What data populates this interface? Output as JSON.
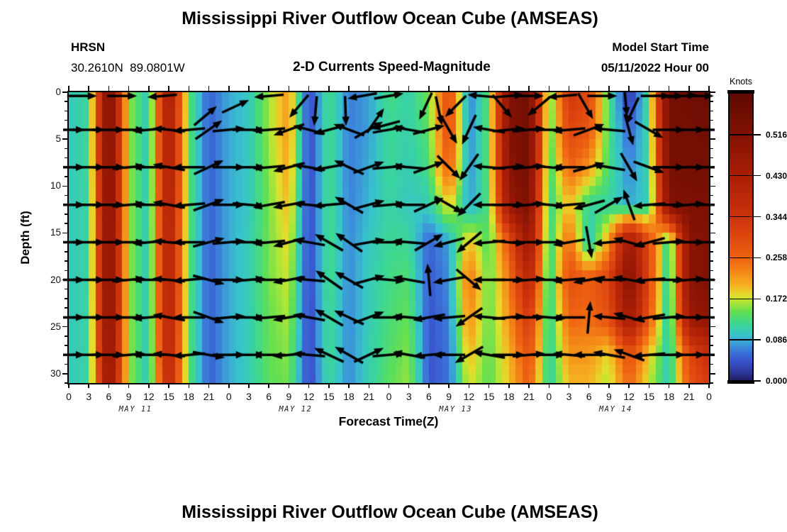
{
  "titles": {
    "main_top": "Mississippi River Outflow Ocean Cube (AMSEAS)",
    "main_bottom": "Mississippi River Outflow Ocean Cube (AMSEAS)",
    "subtitle": "2-D Currents Speed-Magnitude"
  },
  "header": {
    "station": "HRSN",
    "coordinates": "30.2610N  89.0801W",
    "model_start_label": "Model Start Time",
    "model_start_value": "05/11/2022 Hour 00"
  },
  "chart_data": {
    "type": "heatmap",
    "title": "2-D Currents Speed-Magnitude",
    "xlabel": "Forecast Time(Z)",
    "ylabel": "Depth (ft)",
    "x_range_hours": [
      0,
      96
    ],
    "y_range_ft": [
      0,
      31
    ],
    "x_tick_step_hours": 3,
    "x_tick_labels": [
      "0",
      "3",
      "6",
      "9",
      "12",
      "15",
      "18",
      "21",
      "0",
      "3",
      "6",
      "9",
      "12",
      "15",
      "18",
      "21",
      "0",
      "3",
      "6",
      "9",
      "12",
      "15",
      "18",
      "21",
      "0",
      "3",
      "6",
      "9",
      "12",
      "15",
      "18",
      "21",
      "0"
    ],
    "date_labels": [
      {
        "label": "MAY 11",
        "hour": 10
      },
      {
        "label": "MAY 12",
        "hour": 34
      },
      {
        "label": "MAY 13",
        "hour": 58
      },
      {
        "label": "MAY 14",
        "hour": 82
      }
    ],
    "y_tick_labels": [
      "0",
      "5",
      "10",
      "15",
      "20",
      "25",
      "30"
    ],
    "y_tick_values": [
      0,
      5,
      10,
      15,
      20,
      25,
      30
    ],
    "colorbar": {
      "unit": "Knots",
      "range": [
        0,
        0.602
      ],
      "tick_values": [
        0.516,
        0.43,
        0.344,
        0.258,
        0.172,
        0.086,
        0.0
      ],
      "tick_labels": [
        "0.516",
        "0.430",
        "0.344",
        "0.258",
        "0.172",
        "0.086",
        "0.000"
      ]
    },
    "colormap": [
      [
        0.0,
        "#1e1c60"
      ],
      [
        0.02,
        "#2f3a9e"
      ],
      [
        0.045,
        "#3a57d0"
      ],
      [
        0.07,
        "#3d87dc"
      ],
      [
        0.095,
        "#38c3cc"
      ],
      [
        0.12,
        "#3bd795"
      ],
      [
        0.145,
        "#62df52"
      ],
      [
        0.165,
        "#aee637"
      ],
      [
        0.18,
        "#e2df2c"
      ],
      [
        0.2,
        "#f5b322"
      ],
      [
        0.23,
        "#f48818"
      ],
      [
        0.258,
        "#ee6312"
      ],
      [
        0.3,
        "#e04a10"
      ],
      [
        0.344,
        "#cc330c"
      ],
      [
        0.43,
        "#ab1f06"
      ],
      [
        0.516,
        "#831204"
      ],
      [
        0.602,
        "#5f0a02"
      ]
    ],
    "grid_times": [
      0,
      3,
      6,
      9,
      12,
      15,
      18,
      21,
      24,
      27,
      30,
      33,
      36,
      39,
      42,
      45,
      48,
      51,
      54,
      57,
      60,
      63,
      66,
      69,
      72,
      75,
      78,
      81,
      84,
      87,
      90,
      93,
      96
    ],
    "grid_depths": [
      0,
      4,
      8,
      12,
      16,
      20,
      24,
      28,
      31
    ],
    "speed_grid_knots": [
      [
        0.1,
        0.12,
        0.55,
        0.16,
        0.1,
        0.46,
        0.14,
        0.048,
        0.085,
        0.1,
        0.16,
        0.22,
        0.03,
        0.13,
        0.065,
        0.08,
        0.13,
        0.11,
        0.15,
        0.3,
        0.065,
        0.14,
        0.52,
        0.56,
        0.13,
        0.34,
        0.3,
        0.13,
        0.012,
        0.13,
        0.55,
        0.56,
        0.57
      ],
      [
        0.1,
        0.12,
        0.55,
        0.16,
        0.1,
        0.45,
        0.14,
        0.048,
        0.085,
        0.1,
        0.16,
        0.22,
        0.03,
        0.13,
        0.065,
        0.08,
        0.12,
        0.11,
        0.14,
        0.3,
        0.068,
        0.14,
        0.51,
        0.55,
        0.125,
        0.31,
        0.28,
        0.13,
        0.05,
        0.12,
        0.55,
        0.55,
        0.56
      ],
      [
        0.1,
        0.12,
        0.54,
        0.16,
        0.1,
        0.45,
        0.14,
        0.048,
        0.085,
        0.1,
        0.155,
        0.21,
        0.03,
        0.13,
        0.065,
        0.085,
        0.12,
        0.105,
        0.13,
        0.27,
        0.072,
        0.14,
        0.5,
        0.55,
        0.12,
        0.26,
        0.22,
        0.13,
        0.068,
        0.115,
        0.54,
        0.55,
        0.55
      ],
      [
        0.1,
        0.115,
        0.54,
        0.16,
        0.1,
        0.44,
        0.14,
        0.048,
        0.085,
        0.1,
        0.15,
        0.2,
        0.03,
        0.13,
        0.067,
        0.09,
        0.115,
        0.1,
        0.105,
        0.19,
        0.078,
        0.135,
        0.47,
        0.53,
        0.115,
        0.2,
        0.115,
        0.115,
        0.085,
        0.105,
        0.52,
        0.53,
        0.53
      ],
      [
        0.1,
        0.115,
        0.53,
        0.16,
        0.1,
        0.43,
        0.14,
        0.048,
        0.085,
        0.105,
        0.15,
        0.185,
        0.03,
        0.13,
        0.07,
        0.1,
        0.12,
        0.12,
        0.05,
        0.08,
        0.2,
        0.135,
        0.28,
        0.48,
        0.11,
        0.26,
        0.09,
        0.22,
        0.47,
        0.3,
        0.1,
        0.5,
        0.52
      ],
      [
        0.1,
        0.115,
        0.53,
        0.16,
        0.1,
        0.43,
        0.14,
        0.048,
        0.085,
        0.105,
        0.15,
        0.175,
        0.03,
        0.13,
        0.07,
        0.105,
        0.125,
        0.135,
        0.045,
        0.072,
        0.25,
        0.14,
        0.24,
        0.4,
        0.105,
        0.29,
        0.27,
        0.31,
        0.52,
        0.3,
        0.092,
        0.5,
        0.52
      ],
      [
        0.1,
        0.115,
        0.52,
        0.16,
        0.1,
        0.42,
        0.14,
        0.048,
        0.085,
        0.105,
        0.145,
        0.165,
        0.03,
        0.125,
        0.07,
        0.105,
        0.13,
        0.145,
        0.042,
        0.065,
        0.23,
        0.14,
        0.22,
        0.34,
        0.105,
        0.26,
        0.25,
        0.29,
        0.46,
        0.28,
        0.09,
        0.46,
        0.5
      ],
      [
        0.1,
        0.115,
        0.51,
        0.16,
        0.1,
        0.41,
        0.14,
        0.048,
        0.085,
        0.105,
        0.145,
        0.155,
        0.03,
        0.125,
        0.07,
        0.108,
        0.135,
        0.155,
        0.042,
        0.06,
        0.2,
        0.14,
        0.2,
        0.29,
        0.105,
        0.22,
        0.22,
        0.18,
        0.29,
        0.19,
        0.1,
        0.3,
        0.36
      ],
      [
        0.1,
        0.115,
        0.49,
        0.16,
        0.1,
        0.39,
        0.14,
        0.048,
        0.085,
        0.105,
        0.14,
        0.15,
        0.03,
        0.12,
        0.07,
        0.11,
        0.14,
        0.16,
        0.042,
        0.058,
        0.18,
        0.14,
        0.19,
        0.27,
        0.105,
        0.2,
        0.2,
        0.165,
        0.26,
        0.17,
        0.1,
        0.28,
        0.33
      ]
    ],
    "arrow_rows": {
      "depths": [
        4,
        8,
        12,
        16,
        20,
        24,
        28
      ],
      "times": [
        0,
        3,
        6,
        9,
        12,
        15,
        18,
        21,
        24,
        27,
        30,
        33,
        36,
        39,
        42,
        45,
        48,
        51,
        54,
        57,
        60,
        63,
        66,
        69,
        72,
        75,
        78,
        81,
        84,
        87,
        90,
        93,
        96
      ],
      "angles_deg": [
        [
          0,
          0,
          0,
          0,
          185,
          175,
          185,
          35,
          5,
          0,
          185,
          200,
          165,
          195,
          160,
          30,
          10,
          170,
          15,
          -60,
          -115,
          170,
          5,
          5,
          0,
          185,
          20,
          175,
          -75,
          -30,
          0,
          0,
          0
        ],
        [
          0,
          0,
          0,
          5,
          180,
          170,
          180,
          25,
          0,
          0,
          185,
          195,
          170,
          190,
          155,
          20,
          5,
          175,
          20,
          -45,
          -125,
          175,
          5,
          5,
          -5,
          180,
          15,
          170,
          -60,
          -20,
          0,
          0,
          0
        ],
        [
          0,
          0,
          0,
          5,
          180,
          170,
          185,
          20,
          0,
          -5,
          190,
          190,
          175,
          185,
          150,
          15,
          5,
          180,
          25,
          -30,
          -135,
          180,
          0,
          5,
          -5,
          185,
          195,
          30,
          110,
          185,
          0,
          5,
          0
        ],
        [
          0,
          0,
          0,
          0,
          185,
          175,
          180,
          15,
          5,
          0,
          185,
          195,
          170,
          150,
          145,
          10,
          0,
          175,
          30,
          195,
          -140,
          185,
          -5,
          0,
          0,
          190,
          -80,
          185,
          165,
          195,
          5,
          0,
          0
        ],
        [
          0,
          0,
          0,
          5,
          180,
          175,
          185,
          -15,
          0,
          5,
          180,
          190,
          175,
          145,
          150,
          15,
          -5,
          170,
          95,
          190,
          -40,
          180,
          0,
          5,
          0,
          185,
          190,
          180,
          170,
          185,
          0,
          5,
          0
        ],
        [
          0,
          0,
          0,
          0,
          185,
          170,
          180,
          -20,
          5,
          0,
          185,
          190,
          170,
          150,
          155,
          20,
          0,
          175,
          190,
          185,
          -145,
          175,
          5,
          0,
          -5,
          180,
          85,
          175,
          165,
          190,
          5,
          0,
          0
        ],
        [
          0,
          0,
          0,
          5,
          180,
          175,
          185,
          -10,
          0,
          0,
          180,
          185,
          175,
          155,
          150,
          25,
          5,
          170,
          185,
          180,
          -150,
          170,
          0,
          5,
          0,
          175,
          180,
          170,
          160,
          185,
          0,
          0,
          0
        ]
      ]
    },
    "extra_arrows": [
      [
        2,
        0.4,
        0
      ],
      [
        8,
        0.4,
        0
      ],
      [
        14,
        0.4,
        185
      ],
      [
        20.5,
        2.5,
        40
      ],
      [
        25,
        1.5,
        25
      ],
      [
        30,
        0.4,
        185
      ],
      [
        34.5,
        1.5,
        -130
      ],
      [
        37,
        2,
        -95
      ],
      [
        41.5,
        2,
        -88
      ],
      [
        44,
        0.4,
        -170
      ],
      [
        46,
        3,
        55
      ],
      [
        47.5,
        3.5,
        -165
      ],
      [
        48,
        0.4,
        10
      ],
      [
        53.5,
        1.5,
        -115
      ],
      [
        55.5,
        2,
        -78
      ],
      [
        58,
        1.5,
        -135
      ],
      [
        62,
        0.4,
        175
      ],
      [
        65,
        1.5,
        -50
      ],
      [
        66,
        0.4,
        5
      ],
      [
        69,
        0.4,
        0
      ],
      [
        70.5,
        1.5,
        -140
      ],
      [
        74,
        0.4,
        185
      ],
      [
        77.5,
        1.5,
        -60
      ],
      [
        80,
        0.4,
        0
      ],
      [
        83.5,
        1,
        -85
      ],
      [
        84.5,
        2,
        -115
      ],
      [
        88,
        0.4,
        0
      ],
      [
        90,
        0.4,
        0
      ],
      [
        92,
        0.4,
        5
      ],
      [
        94.5,
        0.4,
        0
      ]
    ]
  }
}
